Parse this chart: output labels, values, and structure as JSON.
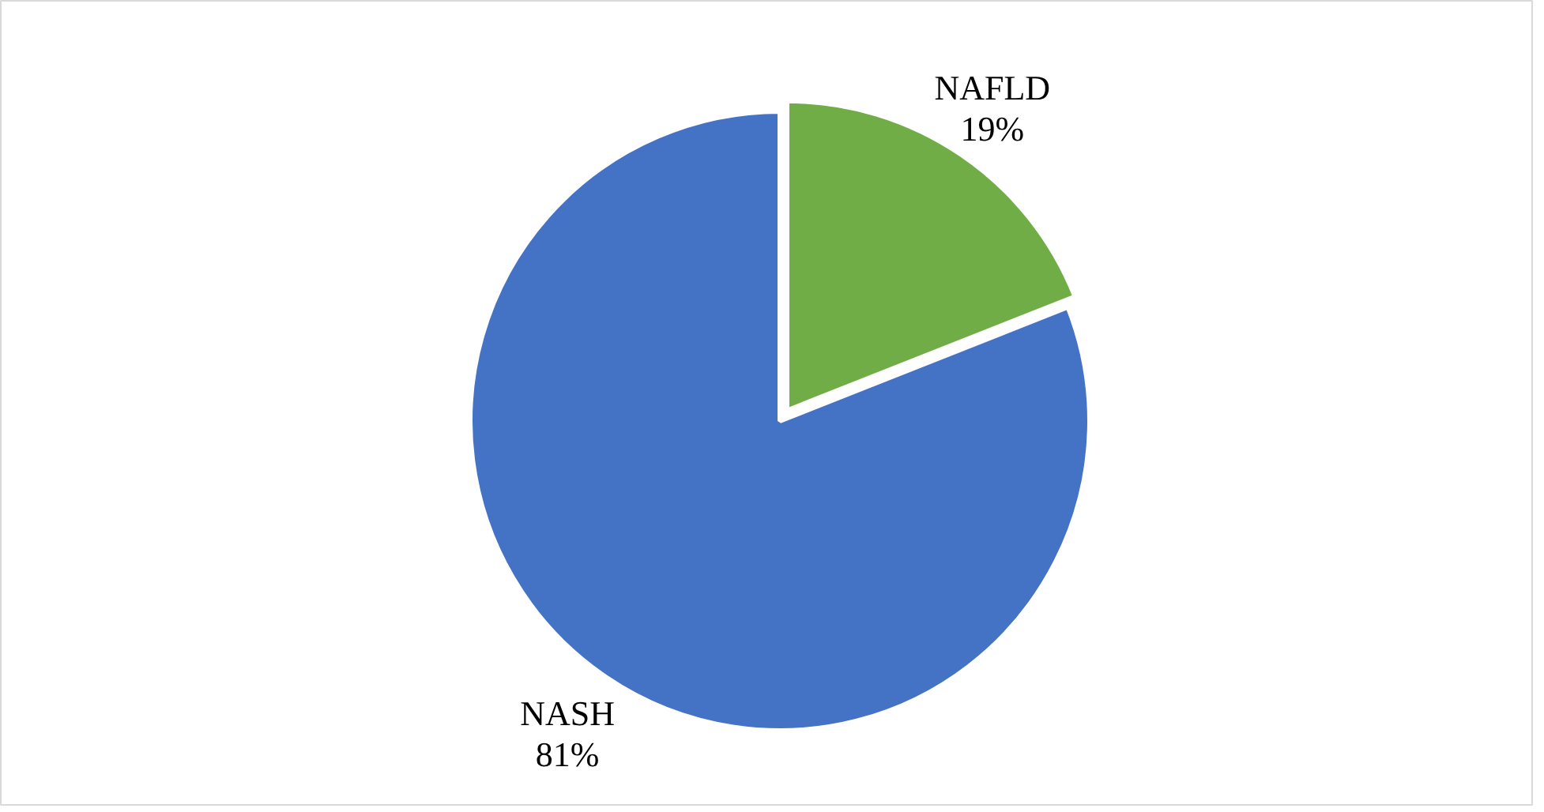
{
  "chart_data": {
    "type": "pie",
    "categories": [
      "NAFLD",
      "NASH"
    ],
    "values": [
      19,
      81
    ],
    "colors": [
      "#70ad47",
      "#4472c4"
    ],
    "value_labels": [
      "19%",
      "81%"
    ]
  }
}
